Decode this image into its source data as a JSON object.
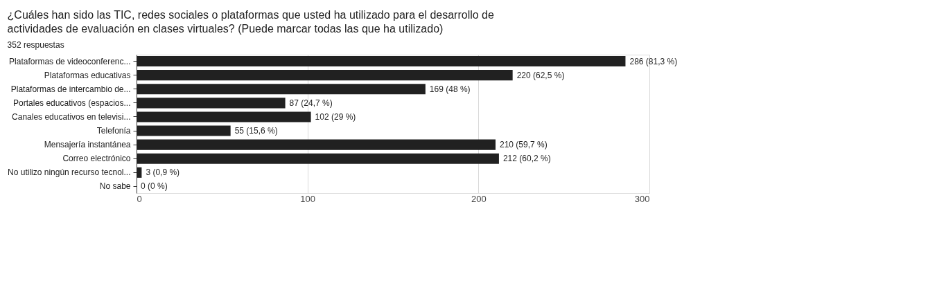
{
  "chart_data": {
    "type": "bar",
    "orientation": "horizontal",
    "title": "¿Cuáles han sido las TIC, redes sociales o plataformas que usted ha utilizado para el desarrollo de actividades de evaluación en clases virtuales? (Puede marcar todas las que ha utilizado)",
    "subtitle": "352 respuestas",
    "categories": [
      "Plataformas de videoconferenc...",
      "Plataformas educativas",
      "Plataformas de intercambio de...",
      "Portales educativos (espacios...",
      "Canales educativos en televisi...",
      "Telefonía",
      "Mensajería instantánea",
      "Correo electrónico",
      "No utilizo ningún recurso tecnol...",
      "No sabe"
    ],
    "values": [
      286,
      220,
      169,
      87,
      102,
      55,
      210,
      212,
      3,
      0
    ],
    "value_labels": [
      "286 (81,3 %)",
      "220 (62,5 %)",
      "169 (48 %)",
      "87 (24,7 %)",
      "102 (29 %)",
      "55 (15,6 %)",
      "210 (59,7 %)",
      "212 (60,2 %)",
      "3 (0,9 %)",
      "0 (0 %)"
    ],
    "color": "#212121",
    "xlim": [
      0,
      300
    ],
    "xticks": [
      0,
      100,
      200,
      300
    ],
    "grid": "x"
  }
}
